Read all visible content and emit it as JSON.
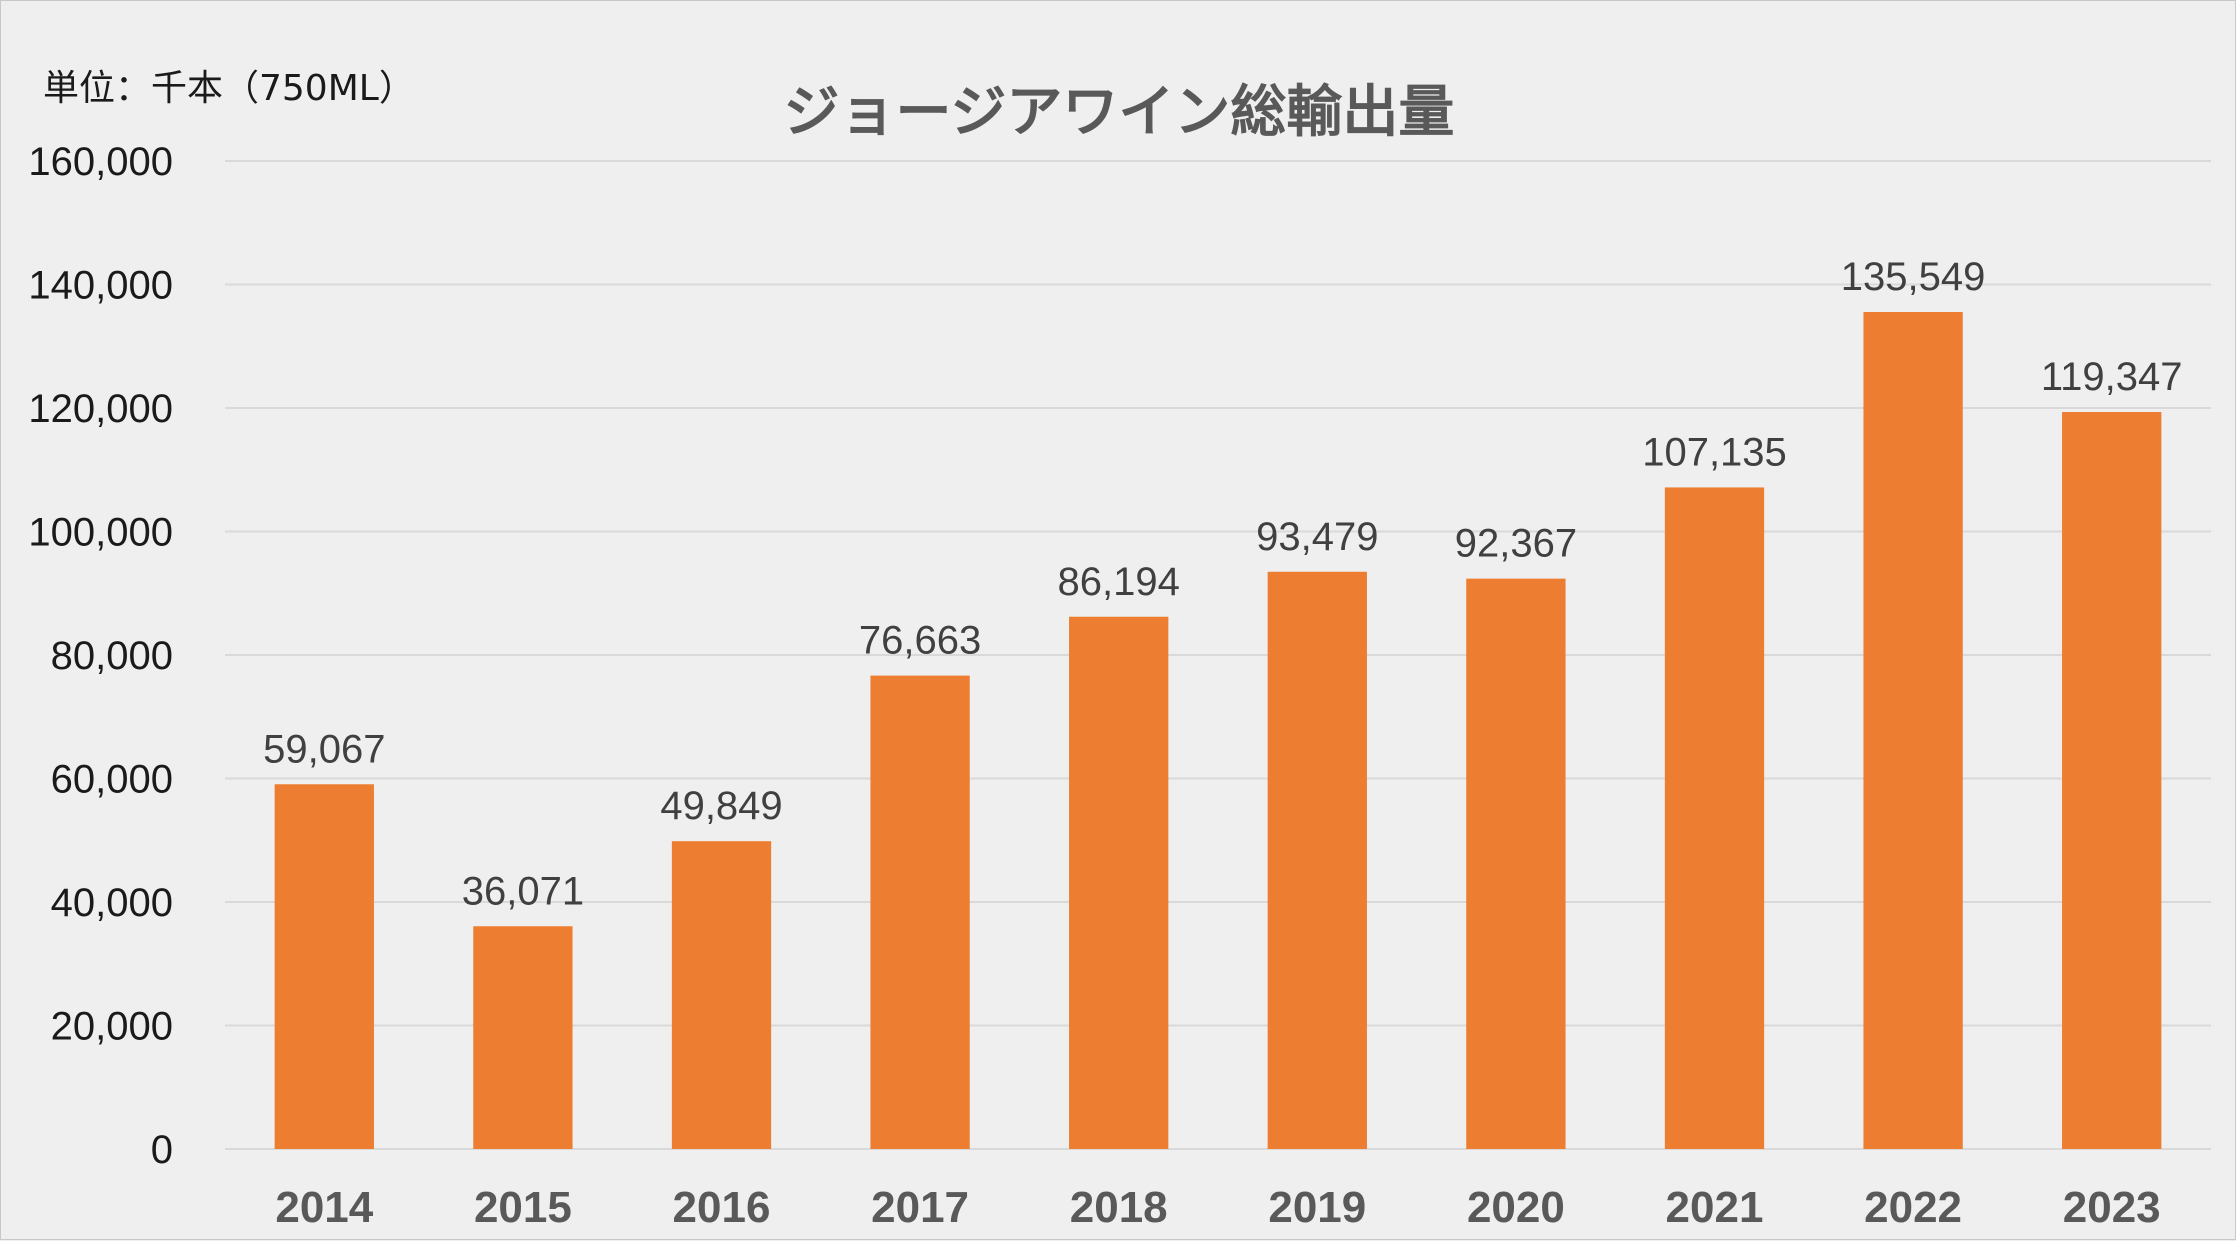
{
  "chart_data": {
    "type": "bar",
    "title": "ジョージアワイン総輸出量",
    "unit_label": "単位：千本（750ML）",
    "categories": [
      "2014",
      "2015",
      "2016",
      "2017",
      "2018",
      "2019",
      "2020",
      "2021",
      "2022",
      "2023"
    ],
    "values": [
      59067,
      36071,
      49849,
      76663,
      86194,
      93479,
      92367,
      107135,
      135549,
      119347
    ],
    "value_labels": [
      "59,067",
      "36,071",
      "49,849",
      "76,663",
      "86,194",
      "93,479",
      "92,367",
      "107,135",
      "135,549",
      "119,347"
    ],
    "ylim": [
      0,
      160000
    ],
    "y_ticks": [
      0,
      20000,
      40000,
      60000,
      80000,
      100000,
      120000,
      140000,
      160000
    ],
    "y_tick_labels": [
      "0",
      "20,000",
      "40,000",
      "60,000",
      "80,000",
      "100,000",
      "120,000",
      "140,000",
      "160,000"
    ],
    "xlabel": "",
    "ylabel": "",
    "grid": true,
    "legend": "none",
    "colors": {
      "bar": "#ed7d31",
      "grid": "#d9d9d9",
      "axis": "#d9d9d9",
      "background": "#efefef"
    }
  }
}
